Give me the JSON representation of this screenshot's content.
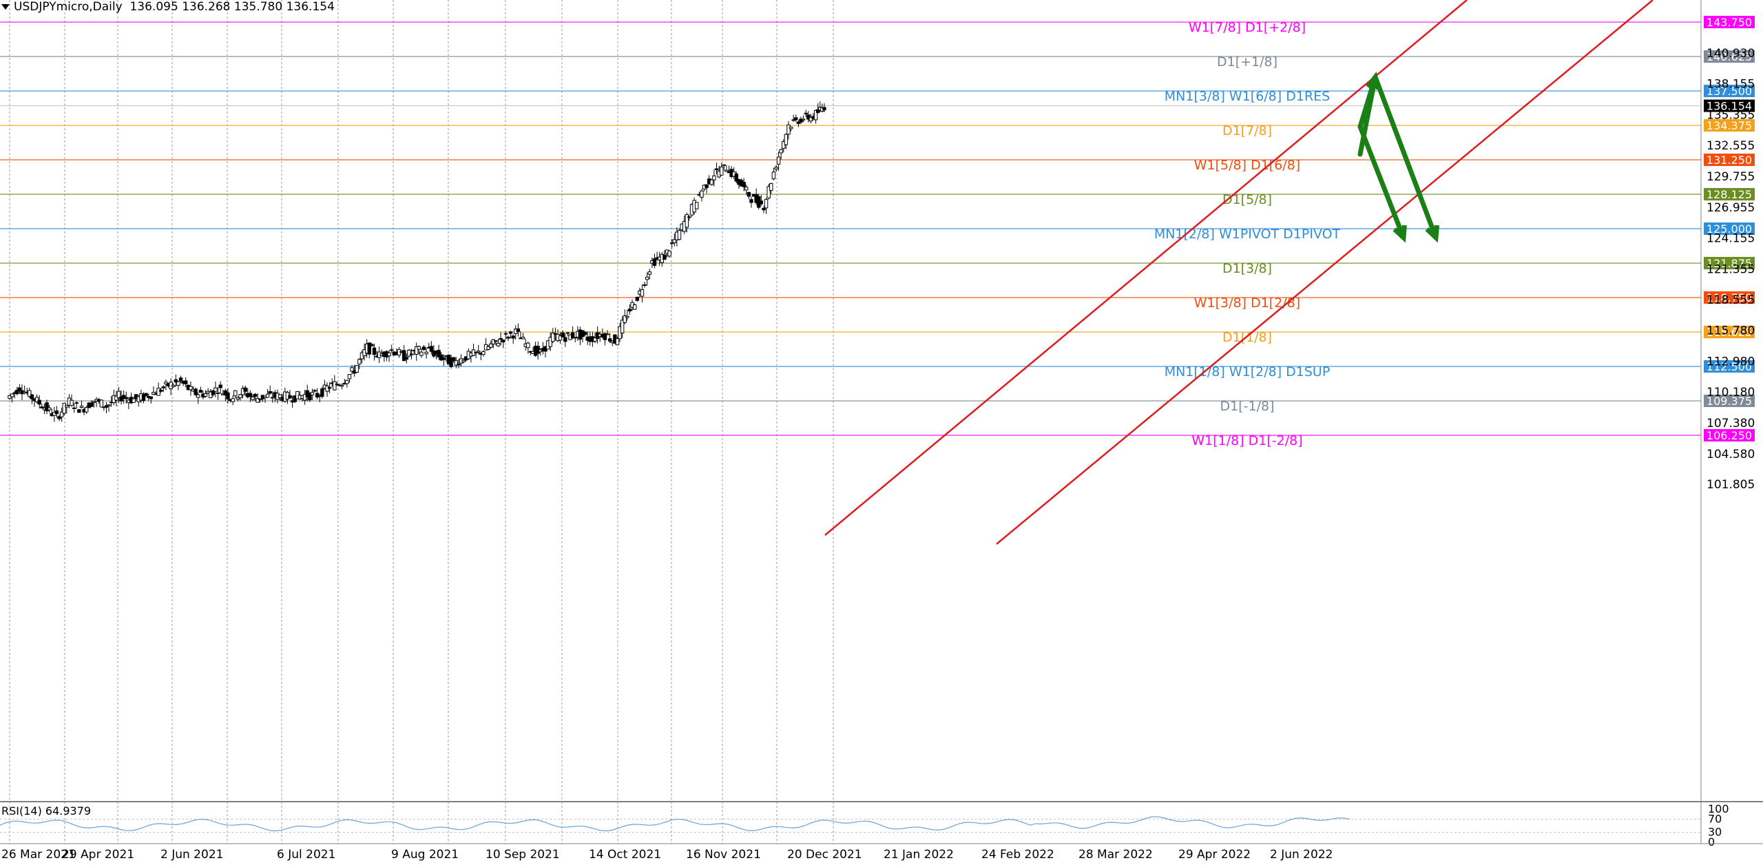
{
  "header": {
    "symbol": "USDJPYmicro,Daily",
    "ohlc": "136.095 136.268 135.780 136.154"
  },
  "rsi": {
    "label": "RSI(14) 64.9379",
    "levels": [
      "100",
      "70",
      "30",
      "0"
    ]
  },
  "colors": {
    "background": "#ffffff",
    "grid": "#9a9a9a",
    "channel": "#e01b1b",
    "arrow": "#1a7f14",
    "candle_up": "#ffffff",
    "candle_down": "#000000",
    "rsi_line": "#6aa3d5"
  },
  "icons": [
    "dropdown-triangle-icon",
    "forecast-arrow-icon"
  ],
  "chart_data": {
    "type": "candlestick",
    "y_axis_ticks": [
      "140.930",
      "138.155",
      "135.355",
      "132.555",
      "129.755",
      "126.955",
      "124.155",
      "121.355",
      "118.555",
      "115.780",
      "112.980",
      "110.180",
      "107.380",
      "104.580",
      "101.805"
    ],
    "ylim": [
      100.0,
      145.0
    ],
    "x_axis_ticks": [
      "26 Mar 2021",
      "29 Apr 2021",
      "2 Jun 2021",
      "6 Jul 2021",
      "9 Aug 2021",
      "10 Sep 2021",
      "14 Oct 2021",
      "16 Nov 2021",
      "20 Dec 2021",
      "21 Jan 2022",
      "24 Feb 2022",
      "28 Mar 2022",
      "29 Apr 2022",
      "2 Jun 2022"
    ],
    "levels": [
      {
        "price": "143.750",
        "text": "W1[7/8] D1[+2/8]",
        "color": "#ff00ff"
      },
      {
        "price": "140.625",
        "text": "D1[+1/8]",
        "color": "#808a96"
      },
      {
        "price": "137.500",
        "text": "MN1[3/8] W1[6/8] D1RES",
        "color": "#2f8fd8"
      },
      {
        "price": "134.375",
        "text": "D1[7/8]",
        "color": "#f5a01a"
      },
      {
        "price": "131.250",
        "text": "W1[5/8] D1[6/8]",
        "color": "#f04e0f"
      },
      {
        "price": "128.125",
        "text": "D1[5/8]",
        "color": "#6b8e23"
      },
      {
        "price": "125.000",
        "text": "MN1[2/8] W1PIVOT D1PIVOT",
        "color": "#2f8fd8"
      },
      {
        "price": "121.875",
        "text": "D1[3/8]",
        "color": "#6b8e23"
      },
      {
        "price": "118.750",
        "text": "W1[3/8] D1[2/8]",
        "color": "#f04e0f"
      },
      {
        "price": "115.625",
        "text": "D1[1/8]",
        "color": "#f5a01a"
      },
      {
        "price": "112.500",
        "text": "MN1[1/8] W1[2/8] D1SUP",
        "color": "#2f8fd8"
      },
      {
        "price": "109.375",
        "text": "D1[-1/8]",
        "color": "#808a96"
      },
      {
        "price": "106.250",
        "text": "W1[1/8] D1[-2/8]",
        "color": "#ff00ff"
      }
    ],
    "current_price": "136.154",
    "closes_weekly": [
      [
        "2021-03-26",
        109.6
      ],
      [
        "2021-04-02",
        110.6
      ],
      [
        "2021-04-09",
        109.7
      ],
      [
        "2021-04-16",
        108.8
      ],
      [
        "2021-04-23",
        107.9
      ],
      [
        "2021-04-30",
        109.3
      ],
      [
        "2021-05-07",
        108.6
      ],
      [
        "2021-05-14",
        109.4
      ],
      [
        "2021-05-21",
        108.9
      ],
      [
        "2021-05-28",
        109.8
      ],
      [
        "2021-06-04",
        109.5
      ],
      [
        "2021-06-11",
        109.7
      ],
      [
        "2021-06-18",
        110.2
      ],
      [
        "2021-06-25",
        110.8
      ],
      [
        "2021-07-02",
        111.1
      ],
      [
        "2021-07-09",
        110.1
      ],
      [
        "2021-07-16",
        110.0
      ],
      [
        "2021-07-23",
        110.5
      ],
      [
        "2021-07-30",
        109.7
      ],
      [
        "2021-08-06",
        110.2
      ],
      [
        "2021-08-13",
        109.6
      ],
      [
        "2021-08-20",
        109.8
      ],
      [
        "2021-08-27",
        109.8
      ],
      [
        "2021-09-03",
        109.7
      ],
      [
        "2021-09-10",
        109.9
      ],
      [
        "2021-09-17",
        109.9
      ],
      [
        "2021-09-24",
        110.7
      ],
      [
        "2021-10-01",
        111.1
      ],
      [
        "2021-10-08",
        112.2
      ],
      [
        "2021-10-15",
        114.2
      ],
      [
        "2021-10-22",
        113.5
      ],
      [
        "2021-10-29",
        114.0
      ],
      [
        "2021-11-05",
        113.4
      ],
      [
        "2021-11-12",
        113.9
      ],
      [
        "2021-11-19",
        114.0
      ],
      [
        "2021-11-26",
        113.3
      ],
      [
        "2021-12-03",
        112.8
      ],
      [
        "2021-12-10",
        113.4
      ],
      [
        "2021-12-17",
        113.7
      ],
      [
        "2021-12-24",
        114.4
      ],
      [
        "2021-12-31",
        115.1
      ],
      [
        "2022-01-07",
        115.6
      ],
      [
        "2022-01-14",
        114.2
      ],
      [
        "2022-01-21",
        113.7
      ],
      [
        "2022-01-28",
        115.2
      ],
      [
        "2022-02-04",
        115.2
      ],
      [
        "2022-02-11",
        115.4
      ],
      [
        "2022-02-18",
        115.0
      ],
      [
        "2022-02-25",
        115.5
      ],
      [
        "2022-03-04",
        114.8
      ],
      [
        "2022-03-11",
        117.3
      ],
      [
        "2022-03-18",
        119.2
      ],
      [
        "2022-03-25",
        122.0
      ],
      [
        "2022-04-01",
        122.5
      ],
      [
        "2022-04-08",
        124.3
      ],
      [
        "2022-04-15",
        126.4
      ],
      [
        "2022-04-22",
        128.5
      ],
      [
        "2022-04-29",
        130.0
      ],
      [
        "2022-05-06",
        130.6
      ],
      [
        "2022-05-13",
        129.2
      ],
      [
        "2022-05-20",
        127.8
      ],
      [
        "2022-05-27",
        127.1
      ],
      [
        "2022-06-03",
        130.9
      ],
      [
        "2022-06-10",
        134.4
      ],
      [
        "2022-06-17",
        135.0
      ],
      [
        "2022-06-24",
        135.2
      ],
      [
        "2022-06-30",
        136.15
      ]
    ]
  }
}
